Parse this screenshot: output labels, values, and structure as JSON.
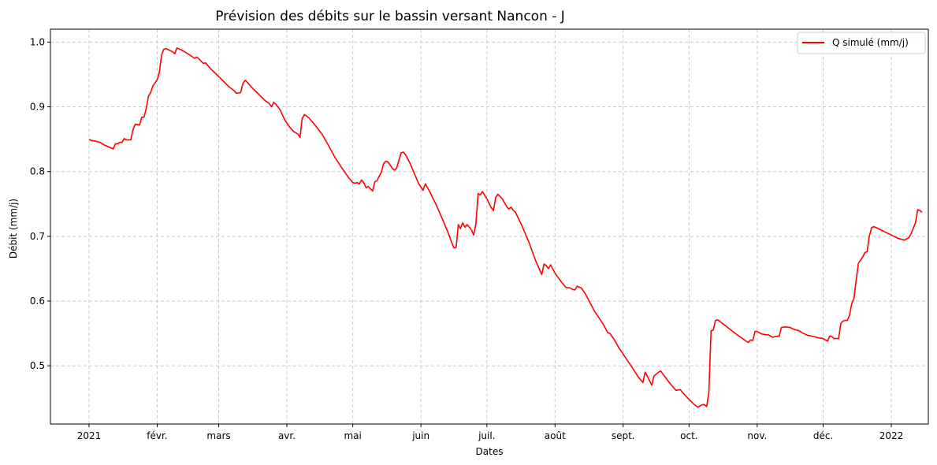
{
  "chart_data": {
    "type": "line",
    "title": "Prévision des débits sur le bassin versant Nancon - J",
    "xlabel": "Dates",
    "ylabel": "Débit (mm/j)",
    "x_start": "2021-01-01",
    "x_end": "2022-01-01",
    "x_ticks": [
      {
        "date": "2021-01-01",
        "label": "2021"
      },
      {
        "date": "2021-02-01",
        "label": "févr."
      },
      {
        "date": "2021-03-01",
        "label": "mars"
      },
      {
        "date": "2021-04-01",
        "label": "avr."
      },
      {
        "date": "2021-05-01",
        "label": "mai"
      },
      {
        "date": "2021-06-01",
        "label": "juin"
      },
      {
        "date": "2021-07-01",
        "label": "juil."
      },
      {
        "date": "2021-08-01",
        "label": "août"
      },
      {
        "date": "2021-09-01",
        "label": "sept."
      },
      {
        "date": "2021-10-01",
        "label": "oct."
      },
      {
        "date": "2021-11-01",
        "label": "nov."
      },
      {
        "date": "2021-12-01",
        "label": "déc."
      },
      {
        "date": "2022-01-01",
        "label": "2022"
      }
    ],
    "ylim": [
      0.41,
      1.02
    ],
    "y_ticks": [
      0.5,
      0.6,
      0.7,
      0.8,
      0.9,
      1.0
    ],
    "y_tick_labels": [
      "0.5",
      "0.6",
      "0.7",
      "0.8",
      "0.9",
      "1.0"
    ],
    "grid": true,
    "legend_position": "top-right",
    "series": [
      {
        "name": "Q simulé (mm/j)",
        "color": "#ff0000",
        "points": [
          [
            "2021-01-01",
            0.85
          ],
          [
            "2021-01-02",
            0.848
          ],
          [
            "2021-01-04",
            0.847
          ],
          [
            "2021-01-06",
            0.845
          ],
          [
            "2021-01-08",
            0.841
          ],
          [
            "2021-01-10",
            0.838
          ],
          [
            "2021-01-12",
            0.835
          ],
          [
            "2021-01-13",
            0.843
          ],
          [
            "2021-01-14",
            0.843
          ],
          [
            "2021-01-15",
            0.845
          ],
          [
            "2021-01-16",
            0.845
          ],
          [
            "2021-01-17",
            0.851
          ],
          [
            "2021-01-18",
            0.849
          ],
          [
            "2021-01-19",
            0.849
          ],
          [
            "2021-01-20",
            0.849
          ],
          [
            "2021-01-21",
            0.865
          ],
          [
            "2021-01-22",
            0.873
          ],
          [
            "2021-01-24",
            0.872
          ],
          [
            "2021-01-25",
            0.884
          ],
          [
            "2021-01-26",
            0.884
          ],
          [
            "2021-01-27",
            0.897
          ],
          [
            "2021-01-28",
            0.916
          ],
          [
            "2021-01-29",
            0.922
          ],
          [
            "2021-01-30",
            0.932
          ],
          [
            "2021-02-01",
            0.942
          ],
          [
            "2021-02-02",
            0.953
          ],
          [
            "2021-02-03",
            0.98
          ],
          [
            "2021-02-04",
            0.989
          ],
          [
            "2021-02-05",
            0.99
          ],
          [
            "2021-02-08",
            0.985
          ],
          [
            "2021-02-09",
            0.982
          ],
          [
            "2021-02-10",
            0.991
          ],
          [
            "2021-02-12",
            0.988
          ],
          [
            "2021-02-15",
            0.982
          ],
          [
            "2021-02-18",
            0.975
          ],
          [
            "2021-02-19",
            0.977
          ],
          [
            "2021-02-20",
            0.974
          ],
          [
            "2021-02-22",
            0.967
          ],
          [
            "2021-02-23",
            0.968
          ],
          [
            "2021-02-25",
            0.96
          ],
          [
            "2021-02-28",
            0.95
          ],
          [
            "2021-03-03",
            0.94
          ],
          [
            "2021-03-06",
            0.93
          ],
          [
            "2021-03-08",
            0.925
          ],
          [
            "2021-03-09",
            0.921
          ],
          [
            "2021-03-11",
            0.922
          ],
          [
            "2021-03-12",
            0.936
          ],
          [
            "2021-03-13",
            0.941
          ],
          [
            "2021-03-14",
            0.938
          ],
          [
            "2021-03-16",
            0.93
          ],
          [
            "2021-03-19",
            0.92
          ],
          [
            "2021-03-22",
            0.91
          ],
          [
            "2021-03-24",
            0.905
          ],
          [
            "2021-03-25",
            0.9
          ],
          [
            "2021-03-26",
            0.907
          ],
          [
            "2021-03-27",
            0.904
          ],
          [
            "2021-03-29",
            0.895
          ],
          [
            "2021-03-31",
            0.88
          ],
          [
            "2021-04-02",
            0.87
          ],
          [
            "2021-04-04",
            0.862
          ],
          [
            "2021-04-06",
            0.858
          ],
          [
            "2021-04-07",
            0.853
          ],
          [
            "2021-04-08",
            0.882
          ],
          [
            "2021-04-09",
            0.888
          ],
          [
            "2021-04-11",
            0.883
          ],
          [
            "2021-04-14",
            0.871
          ],
          [
            "2021-04-17",
            0.858
          ],
          [
            "2021-04-20",
            0.84
          ],
          [
            "2021-04-23",
            0.821
          ],
          [
            "2021-04-26",
            0.806
          ],
          [
            "2021-04-29",
            0.791
          ],
          [
            "2021-05-01",
            0.783
          ],
          [
            "2021-05-02",
            0.782
          ],
          [
            "2021-05-03",
            0.783
          ],
          [
            "2021-05-04",
            0.781
          ],
          [
            "2021-05-05",
            0.787
          ],
          [
            "2021-05-06",
            0.783
          ],
          [
            "2021-05-07",
            0.775
          ],
          [
            "2021-05-08",
            0.777
          ],
          [
            "2021-05-10",
            0.77
          ],
          [
            "2021-05-11",
            0.784
          ],
          [
            "2021-05-12",
            0.786
          ],
          [
            "2021-05-13",
            0.793
          ],
          [
            "2021-05-14",
            0.799
          ],
          [
            "2021-05-15",
            0.812
          ],
          [
            "2021-05-16",
            0.816
          ],
          [
            "2021-05-17",
            0.815
          ],
          [
            "2021-05-19",
            0.805
          ],
          [
            "2021-05-20",
            0.802
          ],
          [
            "2021-05-21",
            0.806
          ],
          [
            "2021-05-22",
            0.818
          ],
          [
            "2021-05-23",
            0.829
          ],
          [
            "2021-05-24",
            0.83
          ],
          [
            "2021-05-25",
            0.826
          ],
          [
            "2021-05-27",
            0.813
          ],
          [
            "2021-05-29",
            0.797
          ],
          [
            "2021-05-31",
            0.781
          ],
          [
            "2021-06-02",
            0.771
          ],
          [
            "2021-06-03",
            0.781
          ],
          [
            "2021-06-05",
            0.769
          ],
          [
            "2021-06-08",
            0.748
          ],
          [
            "2021-06-11",
            0.725
          ],
          [
            "2021-06-14",
            0.7
          ],
          [
            "2021-06-15",
            0.69
          ],
          [
            "2021-06-16",
            0.682
          ],
          [
            "2021-06-17",
            0.683
          ],
          [
            "2021-06-18",
            0.718
          ],
          [
            "2021-06-19",
            0.712
          ],
          [
            "2021-06-20",
            0.721
          ],
          [
            "2021-06-21",
            0.714
          ],
          [
            "2021-06-22",
            0.718
          ],
          [
            "2021-06-24",
            0.71
          ],
          [
            "2021-06-25",
            0.702
          ],
          [
            "2021-06-26",
            0.719
          ],
          [
            "2021-06-27",
            0.766
          ],
          [
            "2021-06-28",
            0.764
          ],
          [
            "2021-06-29",
            0.769
          ],
          [
            "2021-07-01",
            0.758
          ],
          [
            "2021-07-03",
            0.744
          ],
          [
            "2021-07-04",
            0.74
          ],
          [
            "2021-07-05",
            0.76
          ],
          [
            "2021-07-06",
            0.765
          ],
          [
            "2021-07-08",
            0.758
          ],
          [
            "2021-07-10",
            0.746
          ],
          [
            "2021-07-11",
            0.742
          ],
          [
            "2021-07-12",
            0.745
          ],
          [
            "2021-07-13",
            0.74
          ],
          [
            "2021-07-14",
            0.737
          ],
          [
            "2021-07-17",
            0.716
          ],
          [
            "2021-07-20",
            0.692
          ],
          [
            "2021-07-23",
            0.664
          ],
          [
            "2021-07-25",
            0.648
          ],
          [
            "2021-07-26",
            0.641
          ],
          [
            "2021-07-27",
            0.657
          ],
          [
            "2021-07-28",
            0.655
          ],
          [
            "2021-07-29",
            0.65
          ],
          [
            "2021-07-30",
            0.656
          ],
          [
            "2021-08-01",
            0.643
          ],
          [
            "2021-08-02",
            0.638
          ],
          [
            "2021-08-04",
            0.629
          ],
          [
            "2021-08-06",
            0.621
          ],
          [
            "2021-08-08",
            0.62
          ],
          [
            "2021-08-09",
            0.618
          ],
          [
            "2021-08-10",
            0.617
          ],
          [
            "2021-08-11",
            0.623
          ],
          [
            "2021-08-13",
            0.62
          ],
          [
            "2021-08-15",
            0.61
          ],
          [
            "2021-08-17",
            0.597
          ],
          [
            "2021-08-19",
            0.584
          ],
          [
            "2021-08-21",
            0.574
          ],
          [
            "2021-08-23",
            0.564
          ],
          [
            "2021-08-25",
            0.551
          ],
          [
            "2021-08-26",
            0.55
          ],
          [
            "2021-08-28",
            0.54
          ],
          [
            "2021-08-30",
            0.528
          ],
          [
            "2021-09-02",
            0.513
          ],
          [
            "2021-09-05",
            0.498
          ],
          [
            "2021-09-08",
            0.482
          ],
          [
            "2021-09-10",
            0.474
          ],
          [
            "2021-09-11",
            0.49
          ],
          [
            "2021-09-12",
            0.484
          ],
          [
            "2021-09-13",
            0.477
          ],
          [
            "2021-09-14",
            0.47
          ],
          [
            "2021-09-15",
            0.484
          ],
          [
            "2021-09-17",
            0.49
          ],
          [
            "2021-09-18",
            0.492
          ],
          [
            "2021-09-20",
            0.483
          ],
          [
            "2021-09-22",
            0.474
          ],
          [
            "2021-09-24",
            0.466
          ],
          [
            "2021-09-25",
            0.462
          ],
          [
            "2021-09-27",
            0.463
          ],
          [
            "2021-09-29",
            0.455
          ],
          [
            "2021-10-01",
            0.448
          ],
          [
            "2021-10-03",
            0.441
          ],
          [
            "2021-10-05",
            0.436
          ],
          [
            "2021-10-07",
            0.44
          ],
          [
            "2021-10-08",
            0.44
          ],
          [
            "2021-10-09",
            0.437
          ],
          [
            "2021-10-10",
            0.458
          ],
          [
            "2021-10-11",
            0.554
          ],
          [
            "2021-10-12",
            0.555
          ],
          [
            "2021-10-13",
            0.57
          ],
          [
            "2021-10-14",
            0.571
          ],
          [
            "2021-10-16",
            0.566
          ],
          [
            "2021-10-19",
            0.558
          ],
          [
            "2021-10-22",
            0.55
          ],
          [
            "2021-10-25",
            0.543
          ],
          [
            "2021-10-27",
            0.538
          ],
          [
            "2021-10-28",
            0.536
          ],
          [
            "2021-10-29",
            0.54
          ],
          [
            "2021-10-30",
            0.539
          ],
          [
            "2021-10-31",
            0.553
          ],
          [
            "2021-11-01",
            0.553
          ],
          [
            "2021-11-03",
            0.549
          ],
          [
            "2021-11-05",
            0.548
          ],
          [
            "2021-11-06",
            0.548
          ],
          [
            "2021-11-08",
            0.544
          ],
          [
            "2021-11-09",
            0.545
          ],
          [
            "2021-11-11",
            0.546
          ],
          [
            "2021-11-12",
            0.559
          ],
          [
            "2021-11-14",
            0.56
          ],
          [
            "2021-11-16",
            0.559
          ],
          [
            "2021-11-18",
            0.556
          ],
          [
            "2021-11-20",
            0.554
          ],
          [
            "2021-11-22",
            0.55
          ],
          [
            "2021-11-24",
            0.547
          ],
          [
            "2021-11-27",
            0.545
          ],
          [
            "2021-11-29",
            0.543
          ],
          [
            "2021-12-01",
            0.542
          ],
          [
            "2021-12-03",
            0.538
          ],
          [
            "2021-12-04",
            0.546
          ],
          [
            "2021-12-05",
            0.545
          ],
          [
            "2021-12-06",
            0.542
          ],
          [
            "2021-12-08",
            0.542
          ],
          [
            "2021-12-09",
            0.565
          ],
          [
            "2021-12-10",
            0.569
          ],
          [
            "2021-12-11",
            0.57
          ],
          [
            "2021-12-12",
            0.57
          ],
          [
            "2021-12-13",
            0.578
          ],
          [
            "2021-12-14",
            0.596
          ],
          [
            "2021-12-15",
            0.604
          ],
          [
            "2021-12-16",
            0.632
          ],
          [
            "2021-12-17",
            0.658
          ],
          [
            "2021-12-18",
            0.663
          ],
          [
            "2021-12-19",
            0.668
          ],
          [
            "2021-12-20",
            0.675
          ],
          [
            "2021-12-21",
            0.676
          ],
          [
            "2021-12-22",
            0.7
          ],
          [
            "2021-12-23",
            0.713
          ],
          [
            "2021-12-24",
            0.715
          ],
          [
            "2021-12-26",
            0.712
          ],
          [
            "2021-12-29",
            0.707
          ],
          [
            "2022-01-01",
            0.702
          ],
          [
            "2022-01-04",
            0.697
          ],
          [
            "2022-01-07",
            0.694
          ],
          [
            "2022-01-09",
            0.698
          ],
          [
            "2022-01-10",
            0.704
          ],
          [
            "2022-01-12",
            0.721
          ],
          [
            "2022-01-13",
            0.741
          ],
          [
            "2022-01-14",
            0.74
          ],
          [
            "2022-01-15",
            0.737
          ]
        ]
      }
    ]
  }
}
